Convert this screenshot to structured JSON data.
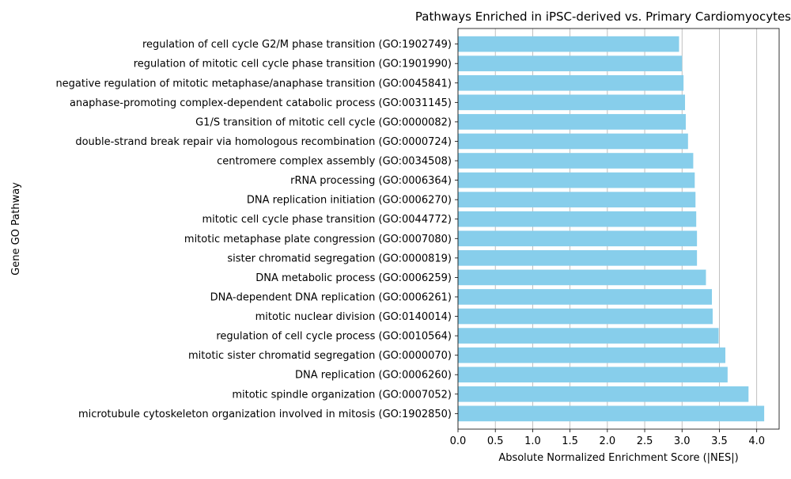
{
  "chart_data": {
    "type": "bar",
    "orientation": "horizontal",
    "title": "Pathways Enriched in iPSC-derived vs. Primary Cardiomyocytes",
    "xlabel": "Absolute Normalized Enrichment Score (|NES|)",
    "ylabel": "Gene GO Pathway",
    "xlim": [
      0,
      4.3
    ],
    "xticks": [
      "0.0",
      "0.5",
      "1.0",
      "1.5",
      "2.0",
      "2.5",
      "3.0",
      "3.5",
      "4.0"
    ],
    "grid": "x-axis vertical gridlines",
    "bar_color": "#87ceeb",
    "categories": [
      "regulation of cell cycle G2/M phase transition (GO:1902749)",
      "regulation of mitotic cell cycle phase transition (GO:1901990)",
      "negative regulation of mitotic metaphase/anaphase transition (GO:0045841)",
      "anaphase-promoting complex-dependent catabolic process (GO:0031145)",
      "G1/S transition of mitotic cell cycle (GO:0000082)",
      "double-strand break repair via homologous recombination (GO:0000724)",
      "centromere complex assembly (GO:0034508)",
      "rRNA processing (GO:0006364)",
      "DNA replication initiation (GO:0006270)",
      "mitotic cell cycle phase transition (GO:0044772)",
      "mitotic metaphase plate congression (GO:0007080)",
      "sister chromatid segregation (GO:0000819)",
      "DNA metabolic process (GO:0006259)",
      "DNA-dependent DNA replication (GO:0006261)",
      "mitotic nuclear division (GO:0140014)",
      "regulation of cell cycle process (GO:0010564)",
      "mitotic sister chromatid segregation (GO:0000070)",
      "DNA replication (GO:0006260)",
      "mitotic spindle organization (GO:0007052)",
      "microtubule cytoskeleton organization involved in mitosis (GO:1902850)"
    ],
    "values": [
      2.96,
      3.0,
      3.02,
      3.04,
      3.05,
      3.08,
      3.15,
      3.17,
      3.18,
      3.19,
      3.2,
      3.2,
      3.32,
      3.4,
      3.41,
      3.49,
      3.58,
      3.61,
      3.89,
      4.1
    ]
  }
}
